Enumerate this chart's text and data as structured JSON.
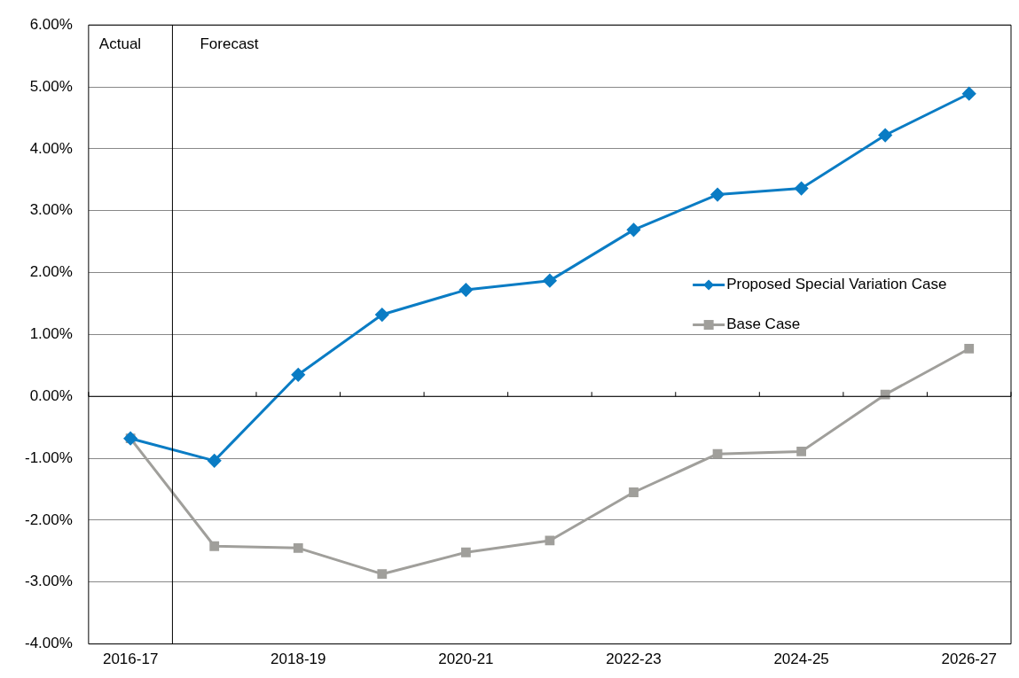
{
  "chart_data": {
    "type": "line",
    "categories": [
      "2016-17",
      null,
      "2018-19",
      null,
      "2020-21",
      null,
      "2022-23",
      null,
      "2024-25",
      null,
      "2026-27"
    ],
    "series": [
      {
        "name": "Proposed Special Variation Case",
        "color": "#0a7cc4",
        "marker": "diamond",
        "values": [
          -0.68,
          -1.04,
          0.35,
          1.32,
          1.72,
          1.87,
          2.69,
          3.26,
          3.36,
          4.22,
          4.89
        ]
      },
      {
        "name": "Base Case",
        "color": "#a09f9b",
        "marker": "square",
        "values": [
          -0.68,
          -2.42,
          -2.45,
          -2.87,
          -2.52,
          -2.33,
          -1.55,
          -0.93,
          -0.89,
          0.03,
          0.77
        ]
      }
    ],
    "ylim": [
      -4,
      6
    ],
    "yticks": [
      {
        "value": -4,
        "label": "-4.00%"
      },
      {
        "value": -3,
        "label": "-3.00%"
      },
      {
        "value": -2,
        "label": "-2.00%"
      },
      {
        "value": -1,
        "label": "-1.00%"
      },
      {
        "value": 0,
        "label": "0.00%"
      },
      {
        "value": 1,
        "label": "1.00%"
      },
      {
        "value": 2,
        "label": "2.00%"
      },
      {
        "value": 3,
        "label": "3.00%"
      },
      {
        "value": 4,
        "label": "4.00%"
      },
      {
        "value": 5,
        "label": "5.00%"
      },
      {
        "value": 6,
        "label": "6.00%"
      }
    ],
    "annotations": [
      "Actual",
      "Forecast"
    ],
    "grid": "y",
    "legend": "right",
    "line_style": "solid"
  }
}
